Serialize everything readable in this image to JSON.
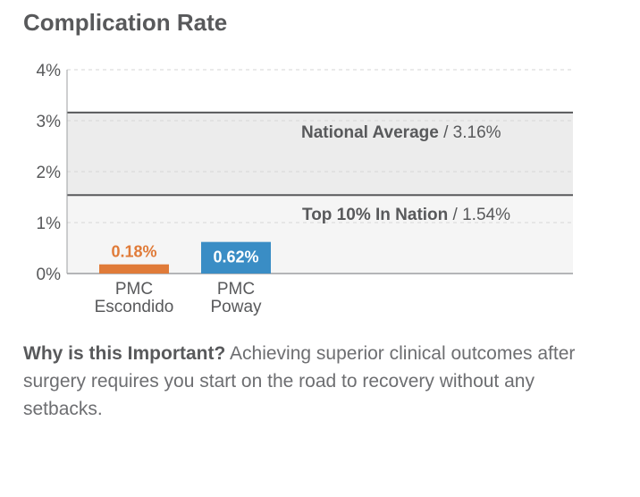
{
  "page": {
    "title": "Complication Rate"
  },
  "chart_data": {
    "type": "bar",
    "ylim": [
      0,
      4
    ],
    "yticks": [
      "0%",
      "1%",
      "2%",
      "3%",
      "4%"
    ],
    "grid": true,
    "categories": [
      {
        "line1": "PMC",
        "line2": "Escondido"
      },
      {
        "line1": "PMC",
        "line2": "Poway"
      }
    ],
    "values": [
      0.18,
      0.62
    ],
    "value_labels": [
      "0.18%",
      "0.62%"
    ],
    "bar_colors": [
      "#e07b39",
      "#3a8dc5"
    ],
    "label_colors": [
      "#e07b39",
      "#ffffff"
    ],
    "reference_lines": [
      {
        "name": "National Average",
        "separator": "/",
        "value": 3.16,
        "value_label": "3.16%"
      },
      {
        "name": "Top 10% In Nation",
        "separator": "/",
        "value": 1.54,
        "value_label": "1.54%"
      }
    ]
  },
  "note": {
    "lead": "Why is this Important?",
    "text": " Achieving superior clinical outcomes after surgery requires you start on the road to recovery without any setbacks."
  }
}
